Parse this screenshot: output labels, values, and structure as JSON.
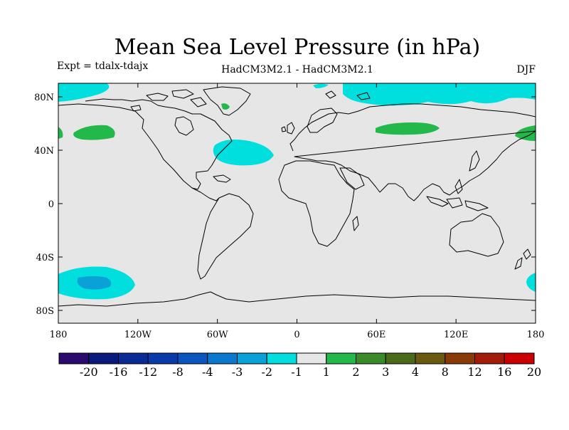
{
  "header": {
    "title": "Mean Sea Level Pressure (in hPa)",
    "experiment": "Expt = tdalx-tdajx",
    "model": "HadCM3M2.1 - HadCM3M2.1",
    "season": "DJF"
  },
  "map": {
    "y_ticks": [
      "80N",
      "40N",
      "0",
      "40S",
      "80S"
    ],
    "x_ticks": [
      "180",
      "120W",
      "60W",
      "0",
      "60E",
      "120E",
      "180"
    ],
    "background_color": "#e6e6e6",
    "coastline_color": "#000000"
  },
  "legend": {
    "labels": [
      "-20",
      "-16",
      "-12",
      "-8",
      "-4",
      "-3",
      "-2",
      "-1",
      "1",
      "2",
      "3",
      "4",
      "8",
      "12",
      "16",
      "20"
    ],
    "colors": [
      "#2a0a6e",
      "#0a1a7a",
      "#0a2a96",
      "#0a3aaa",
      "#0a55c0",
      "#0a78cc",
      "#0aa0d8",
      "#00dede",
      "#e6e6e6",
      "#22b84a",
      "#3a8a2a",
      "#4a6a1a",
      "#6a5a10",
      "#8a3a08",
      "#a41a08",
      "#cc0000"
    ]
  }
}
